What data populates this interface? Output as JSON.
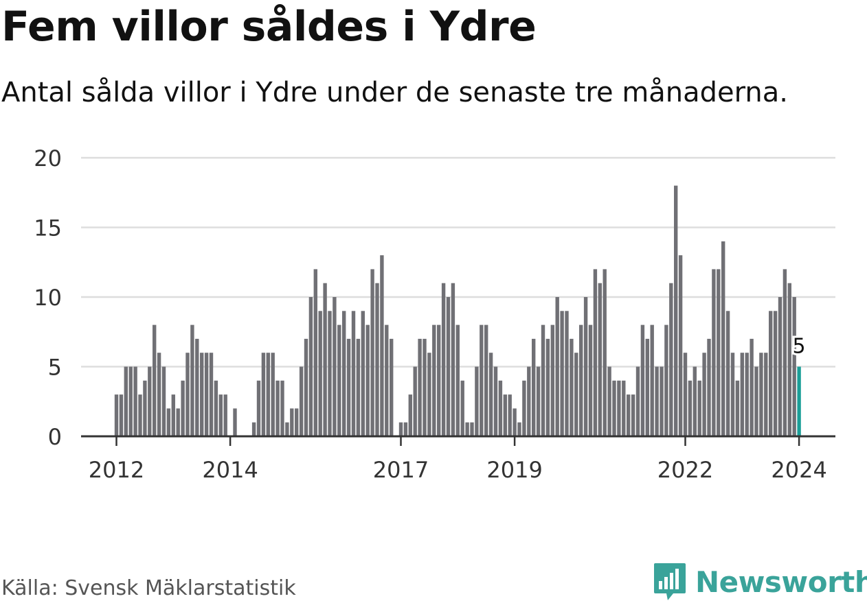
{
  "title": "Fem villor såldes i Ydre",
  "subtitle": "Antal sålda villor i Ydre under de senaste tre månaderna.",
  "source": "Källa: Svensk Mäklarstatistik",
  "brand": {
    "name": "Newsworthy",
    "logo_icon": "bar-chart-speech-bubble-icon",
    "color": "#3aa39a"
  },
  "colors": {
    "bar": "#707075",
    "highlight": "#1a9e97",
    "grid": "#dddddd",
    "axis": "#333333",
    "text": "#333333"
  },
  "chart_data": {
    "type": "bar",
    "title": "Fem villor såldes i Ydre",
    "xlabel": "",
    "ylabel": "",
    "ylim": [
      0,
      20
    ],
    "yticks": [
      "0",
      "5",
      "10",
      "15",
      "20"
    ],
    "grid": true,
    "x_start": "2011-12",
    "xticks": [
      {
        "label": "2012",
        "index": 0
      },
      {
        "label": "2014",
        "index": 24
      },
      {
        "label": "2017",
        "index": 60
      },
      {
        "label": "2019",
        "index": 84
      },
      {
        "label": "2022",
        "index": 120
      },
      {
        "label": "2024",
        "index": 144
      }
    ],
    "values": [
      3,
      3,
      5,
      5,
      5,
      3,
      4,
      5,
      8,
      6,
      5,
      2,
      3,
      2,
      4,
      6,
      8,
      7,
      6,
      6,
      6,
      4,
      3,
      3,
      0,
      2,
      0,
      0,
      0,
      1,
      4,
      6,
      6,
      6,
      4,
      4,
      1,
      2,
      2,
      5,
      7,
      10,
      12,
      9,
      11,
      9,
      10,
      8,
      9,
      7,
      9,
      7,
      9,
      8,
      12,
      11,
      13,
      8,
      7,
      0,
      1,
      1,
      3,
      5,
      7,
      7,
      6,
      8,
      8,
      11,
      10,
      11,
      8,
      4,
      1,
      1,
      5,
      8,
      8,
      6,
      5,
      4,
      3,
      3,
      2,
      1,
      4,
      5,
      7,
      5,
      8,
      7,
      8,
      10,
      9,
      9,
      7,
      6,
      8,
      10,
      8,
      12,
      11,
      12,
      5,
      4,
      4,
      4,
      3,
      3,
      5,
      8,
      7,
      8,
      5,
      5,
      8,
      11,
      18,
      13,
      6,
      4,
      5,
      4,
      6,
      7,
      12,
      12,
      14,
      9,
      6,
      4,
      6,
      6,
      7,
      5,
      6,
      6,
      9,
      9,
      10,
      12,
      11,
      10,
      5
    ],
    "highlight": {
      "index": 144,
      "value": 5,
      "label": "5"
    }
  }
}
